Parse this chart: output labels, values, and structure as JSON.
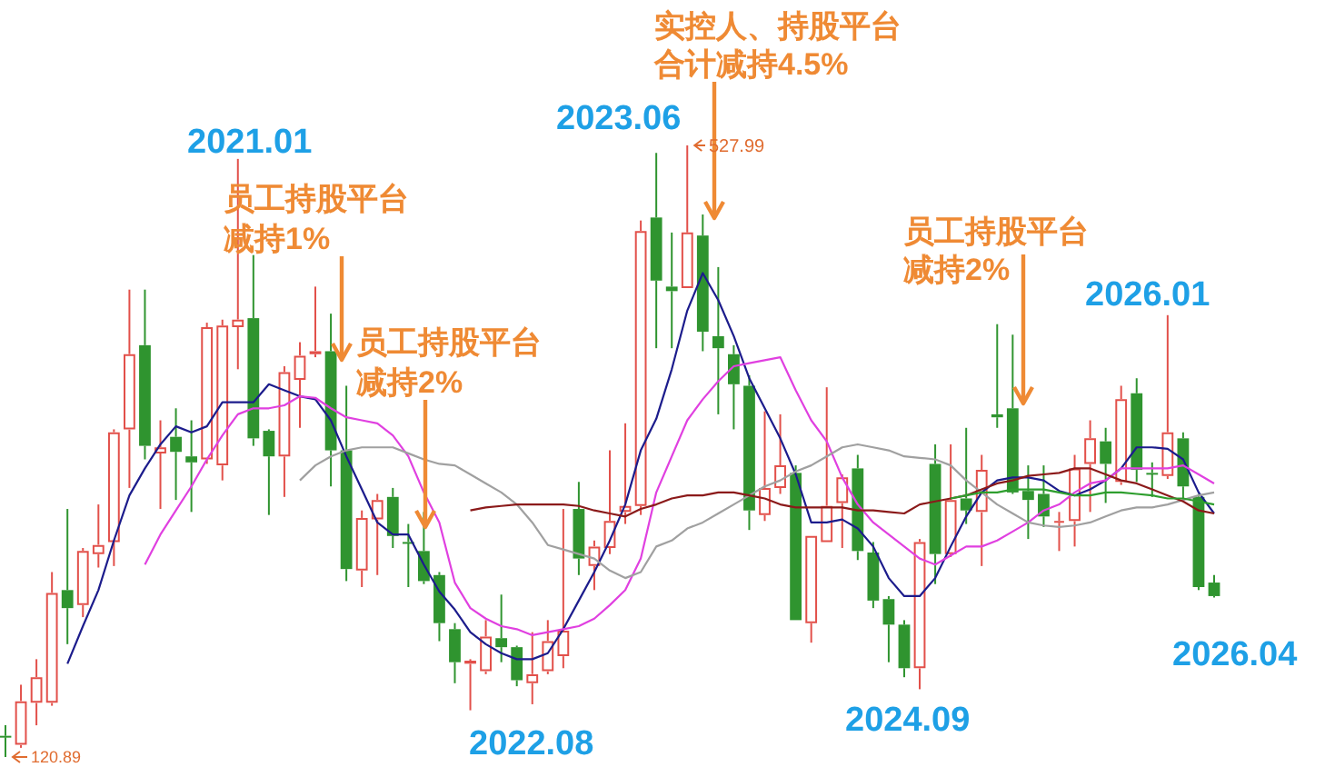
{
  "chart_data": {
    "type": "candlestick",
    "categories": [
      null,
      null,
      null,
      null,
      null,
      null,
      null,
      null,
      null,
      null,
      null,
      null,
      null,
      null,
      null,
      null,
      null,
      null,
      null,
      null,
      null,
      null,
      null,
      null,
      null,
      null,
      null,
      null,
      null,
      null,
      null,
      null,
      null,
      null,
      null,
      null,
      null,
      null,
      null,
      null,
      null,
      null,
      null,
      null,
      null,
      null,
      null,
      null,
      null,
      null,
      null,
      null,
      null,
      null,
      null,
      null,
      null,
      null,
      null,
      null,
      null,
      null,
      null,
      null,
      null,
      null,
      null,
      null,
      null,
      null,
      null,
      null,
      null,
      null,
      null,
      null,
      null,
      null,
      null
    ],
    "ohlc": [
      [
        135,
        142,
        120.89,
        134
      ],
      [
        129,
        169,
        127,
        158
      ],
      [
        157,
        186,
        142,
        174
      ],
      [
        157,
        244,
        155,
        230
      ],
      [
        232,
        286,
        196,
        220
      ],
      [
        222,
        260,
        214,
        258
      ],
      [
        256,
        289,
        247,
        262
      ],
      [
        264,
        339,
        248,
        337
      ],
      [
        339,
        432,
        300,
        389
      ],
      [
        395,
        432,
        319,
        328
      ],
      [
        323,
        345,
        286,
        327
      ],
      [
        334,
        353,
        292,
        324
      ],
      [
        321,
        345,
        284,
        317
      ],
      [
        319,
        410,
        316,
        407
      ],
      [
        315,
        412,
        305,
        408
      ],
      [
        407,
        519,
        379,
        412
      ],
      [
        413,
        455,
        328,
        333
      ],
      [
        338,
        339,
        282,
        321
      ],
      [
        321,
        381,
        294,
        377
      ],
      [
        372,
        397,
        340,
        388
      ],
      [
        389,
        434,
        387,
        391
      ],
      [
        391,
        416,
        301,
        325
      ],
      [
        325,
        368,
        238,
        246
      ],
      [
        245,
        285,
        234,
        280
      ],
      [
        279,
        296,
        242,
        292
      ],
      [
        294,
        300,
        260,
        268
      ],
      [
        264,
        276,
        234,
        263
      ],
      [
        258,
        284,
        236,
        238
      ],
      [
        242,
        244,
        198,
        210
      ],
      [
        206,
        210,
        170,
        184
      ],
      [
        183,
        186,
        152,
        185
      ],
      [
        178,
        212,
        176,
        201
      ],
      [
        200,
        229,
        184,
        194
      ],
      [
        194,
        195,
        168,
        172
      ],
      [
        170,
        204,
        156,
        176
      ],
      [
        178,
        212,
        176,
        198
      ],
      [
        188,
        286,
        180,
        205
      ],
      [
        286,
        304,
        242,
        253
      ],
      [
        248,
        265,
        232,
        261
      ],
      [
        260,
        325,
        256,
        278
      ],
      [
        284,
        343,
        276,
        288
      ],
      [
        288,
        478,
        282,
        471
      ],
      [
        480,
        523,
        393,
        438
      ],
      [
        434,
        470,
        393,
        431
      ],
      [
        433,
        527.99,
        433,
        470
      ],
      [
        468,
        482,
        391,
        404
      ],
      [
        401,
        447,
        349,
        393
      ],
      [
        389,
        395,
        339,
        369
      ],
      [
        368,
        375,
        272,
        285
      ],
      [
        282,
        351,
        278,
        300
      ],
      [
        300,
        349,
        296,
        315
      ],
      [
        310,
        315,
        212,
        212
      ],
      [
        210,
        268,
        197,
        268
      ],
      [
        264,
        367,
        264,
        288
      ],
      [
        290,
        309,
        260,
        307
      ],
      [
        313,
        322,
        252,
        258
      ],
      [
        257,
        264,
        220,
        225
      ],
      [
        226,
        228,
        184,
        209
      ],
      [
        209,
        212,
        174,
        180
      ],
      [
        180,
        266,
        166,
        264
      ],
      [
        316,
        329,
        236,
        256
      ],
      [
        256,
        329,
        254,
        292
      ],
      [
        293,
        340,
        276,
        285
      ],
      [
        284,
        322,
        248,
        312
      ],
      [
        349,
        409,
        340,
        347
      ],
      [
        353,
        402,
        296,
        297
      ],
      [
        298,
        315,
        266,
        292
      ],
      [
        296,
        315,
        274,
        281
      ],
      [
        277,
        284,
        258,
        278
      ],
      [
        278,
        322,
        261,
        313
      ],
      [
        316,
        345,
        284,
        333
      ],
      [
        331,
        340,
        290,
        316
      ],
      [
        304,
        368,
        302,
        359
      ],
      [
        363,
        373,
        304,
        312
      ],
      [
        310,
        317,
        294,
        309
      ],
      [
        308,
        415,
        306,
        337
      ],
      [
        333,
        337,
        292,
        301
      ],
      [
        294,
        296,
        232,
        234
      ],
      [
        237,
        242,
        227,
        228
      ]
    ],
    "series": [
      {
        "type": "line",
        "color": "#1c1c8c",
        "values": [
          null,
          null,
          null,
          null,
          183,
          208,
          232,
          265,
          295,
          313,
          329,
          341,
          337,
          341,
          357,
          357,
          357,
          369,
          365,
          361,
          359,
          345,
          321,
          299,
          277,
          269,
          269,
          249,
          231,
          219,
          204,
          196,
          190,
          186,
          186,
          190,
          206,
          225,
          244,
          265,
          289,
          325,
          346,
          379,
          418,
          443,
          425,
          401,
          373,
          353,
          333,
          309,
          277,
          277,
          279,
          273,
          261,
          240,
          228,
          228,
          240,
          261,
          281,
          297,
          305,
          307,
          307,
          305,
          298,
          295,
          299,
          305,
          313,
          327,
          327,
          326,
          319,
          297,
          283
        ]
      },
      {
        "type": "line",
        "color": "#e040e0",
        "values": [
          null,
          null,
          null,
          null,
          null,
          null,
          null,
          null,
          null,
          249,
          269,
          285,
          301,
          319,
          335,
          349,
          353,
          353,
          355,
          361,
          360,
          353,
          347,
          345,
          343,
          335,
          321,
          297,
          277,
          237,
          220,
          213,
          208,
          206,
          202,
          204,
          206,
          208,
          213,
          222,
          232,
          253,
          297,
          321,
          345,
          359,
          371,
          381,
          383,
          385,
          387,
          365,
          345,
          331,
          307,
          289,
          277,
          269,
          261,
          253,
          249,
          255,
          261,
          261,
          265,
          271,
          277,
          285,
          289,
          297,
          303,
          305,
          313,
          313,
          313,
          313,
          315,
          309,
          303
        ]
      },
      {
        "type": "line",
        "color": "#a0a0a0",
        "values": [
          null,
          null,
          null,
          null,
          null,
          null,
          null,
          null,
          null,
          null,
          null,
          null,
          null,
          null,
          null,
          null,
          null,
          null,
          null,
          305,
          315,
          321,
          325,
          327,
          327,
          327,
          323,
          319,
          316,
          315,
          309,
          303,
          297,
          289,
          277,
          262,
          259,
          256,
          253,
          245,
          240,
          244,
          261,
          265,
          273,
          277,
          283,
          289,
          295,
          301,
          305,
          311,
          315,
          321,
          327,
          329,
          327,
          325,
          321,
          320,
          319,
          315,
          305,
          297,
          289,
          283,
          277,
          275,
          274,
          275,
          277,
          281,
          285,
          287,
          287,
          289,
          292,
          295,
          297
        ]
      },
      {
        "type": "line",
        "color": "#8b1a1a",
        "values": [
          null,
          null,
          null,
          null,
          null,
          null,
          null,
          null,
          null,
          null,
          null,
          null,
          null,
          null,
          null,
          null,
          null,
          null,
          null,
          null,
          null,
          null,
          null,
          null,
          null,
          null,
          null,
          null,
          null,
          null,
          285,
          287,
          288,
          289,
          289,
          289,
          289,
          288,
          285,
          283,
          281,
          286,
          289,
          293,
          295,
          295,
          297,
          297,
          295,
          293,
          289,
          287,
          287,
          287,
          287,
          285,
          285,
          284,
          283,
          289,
          291,
          293,
          295,
          299,
          303,
          305,
          308,
          309,
          310,
          313,
          313,
          309,
          305,
          303,
          299,
          295,
          291,
          285,
          283
        ]
      },
      {
        "type": "line",
        "color": "#2e9e2e",
        "values": [
          null,
          null,
          null,
          null,
          null,
          null,
          null,
          null,
          null,
          null,
          null,
          null,
          null,
          null,
          null,
          null,
          null,
          null,
          null,
          null,
          null,
          null,
          null,
          null,
          null,
          null,
          null,
          null,
          null,
          null,
          null,
          null,
          null,
          null,
          null,
          null,
          null,
          null,
          null,
          null,
          null,
          null,
          null,
          null,
          null,
          null,
          null,
          null,
          null,
          null,
          null,
          null,
          null,
          null,
          null,
          null,
          null,
          null,
          null,
          null,
          null,
          293,
          295,
          297,
          297,
          299,
          299,
          299,
          297,
          295,
          295,
          297,
          297,
          296,
          295,
          293,
          293,
          291,
          289
        ]
      }
    ],
    "annotations": [
      "2021.01",
      "员工持股平台",
      "减持1%",
      "员工持股平台",
      "减持2%",
      "2022.08",
      "2023.06",
      "实控人、持股平台",
      "合计减持4.5%",
      "527.99",
      "120.89",
      "员工持股平台",
      "减持2%",
      "2026.01",
      "2024.09",
      "2026.04"
    ]
  }
}
